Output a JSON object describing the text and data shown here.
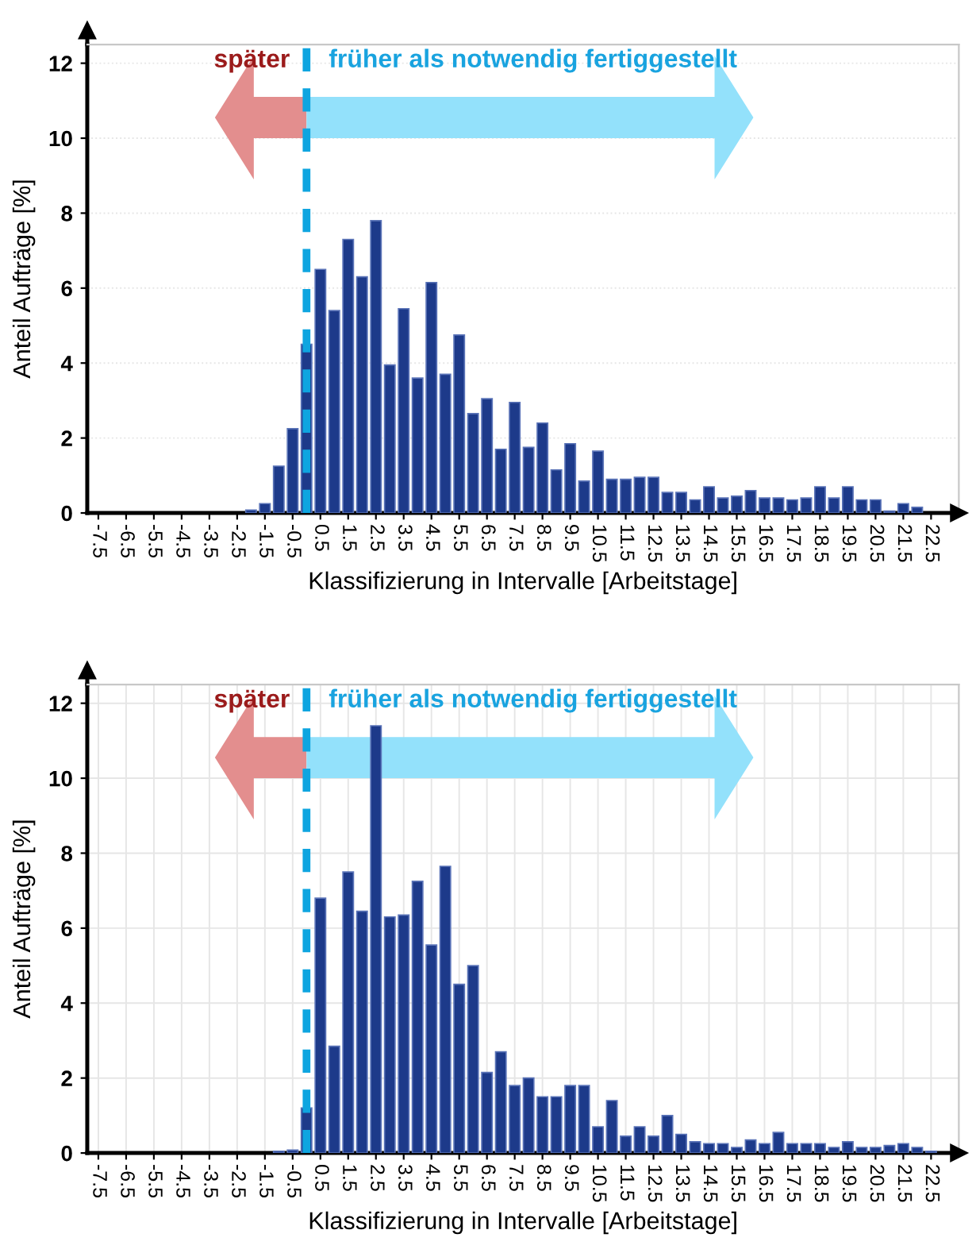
{
  "chart_data": [
    {
      "type": "bar",
      "xlabel": "Klassifizierung in Intervalle [Arbeitstage]",
      "ylabel": "Anteil Aufträge [%]",
      "x": [
        -2.0,
        -1.5,
        -1.0,
        -0.5,
        0.0,
        0.5,
        1.0,
        1.5,
        2.0,
        2.5,
        3.0,
        3.5,
        4.0,
        4.5,
        5.0,
        5.5,
        6.0,
        6.5,
        7.0,
        7.5,
        8.0,
        8.5,
        9.0,
        9.5,
        10.0,
        10.5,
        11.0,
        11.5,
        12.0,
        12.5,
        13.0,
        13.5,
        14.0,
        14.5,
        15.0,
        15.5,
        16.0,
        16.5,
        17.0,
        17.5,
        18.0,
        18.5,
        19.0,
        19.5,
        20.0,
        20.5,
        21.0,
        21.5,
        22.0
      ],
      "values": [
        0.08,
        0.25,
        1.25,
        2.25,
        4.5,
        6.5,
        5.4,
        7.3,
        6.3,
        7.8,
        3.95,
        5.45,
        3.6,
        6.15,
        3.7,
        4.75,
        2.65,
        3.05,
        1.7,
        2.95,
        1.75,
        2.4,
        1.15,
        1.85,
        0.85,
        1.65,
        0.9,
        0.9,
        0.95,
        0.95,
        0.55,
        0.55,
        0.35,
        0.7,
        0.4,
        0.45,
        0.6,
        0.4,
        0.4,
        0.35,
        0.4,
        0.7,
        0.4,
        0.7,
        0.35,
        0.35,
        0.05,
        0.25,
        0.15
      ],
      "color": "#1d3a8a",
      "xlim": [
        -7.9,
        23.5
      ],
      "ylim": [
        0,
        12.5
      ],
      "xticks": [
        -7.5,
        -6.5,
        -5.5,
        -4.5,
        -3.5,
        -2.5,
        -1.5,
        -0.5,
        0.5,
        1.5,
        2.5,
        3.5,
        4.5,
        5.5,
        6.5,
        7.5,
        8.5,
        9.5,
        10.5,
        11.5,
        12.5,
        13.5,
        14.5,
        15.5,
        16.5,
        17.5,
        18.5,
        19.5,
        20.5,
        21.5,
        22.5
      ],
      "yticks": [
        0,
        2,
        4,
        6,
        8,
        10,
        12
      ],
      "grid": "y",
      "ref_lines": [
        {
          "axis": "x",
          "value": 0,
          "color": "#0ea5e0",
          "line_style": "dashed"
        }
      ],
      "annotations": [
        "später",
        "früher als notwendig fertiggestellt"
      ]
    },
    {
      "type": "bar",
      "xlabel": "Klassifizierung in Intervalle [Arbeitstage]",
      "ylabel": "Anteil Aufträge [%]",
      "x": [
        -1.0,
        -0.5,
        0.0,
        0.5,
        1.0,
        1.5,
        2.0,
        2.5,
        3.0,
        3.5,
        4.0,
        4.5,
        5.0,
        5.5,
        6.0,
        6.5,
        7.0,
        7.5,
        8.0,
        8.5,
        9.0,
        9.5,
        10.0,
        10.5,
        11.0,
        11.5,
        12.0,
        12.5,
        13.0,
        13.5,
        14.0,
        14.5,
        15.0,
        15.5,
        16.0,
        16.5,
        17.0,
        17.5,
        18.0,
        18.5,
        19.0,
        19.5,
        20.0,
        20.5,
        21.0,
        21.5,
        22.0,
        22.5
      ],
      "values": [
        0.05,
        0.08,
        1.2,
        6.8,
        2.85,
        7.5,
        6.45,
        11.4,
        6.3,
        6.35,
        7.25,
        5.55,
        7.65,
        4.5,
        5.0,
        2.15,
        2.7,
        1.8,
        2.0,
        1.5,
        1.5,
        1.8,
        1.8,
        0.7,
        1.4,
        0.45,
        0.7,
        0.45,
        1.0,
        0.5,
        0.3,
        0.25,
        0.25,
        0.15,
        0.35,
        0.25,
        0.55,
        0.25,
        0.25,
        0.25,
        0.15,
        0.3,
        0.15,
        0.15,
        0.2,
        0.25,
        0.15,
        0.05
      ],
      "color": "#1d3a8a",
      "xlim": [
        -7.9,
        23.5
      ],
      "ylim": [
        0,
        12.5
      ],
      "xticks": [
        -7.5,
        -6.5,
        -5.5,
        -4.5,
        -3.5,
        -2.5,
        -1.5,
        -0.5,
        0.5,
        1.5,
        2.5,
        3.5,
        4.5,
        5.5,
        6.5,
        7.5,
        8.5,
        9.5,
        10.5,
        11.5,
        12.5,
        13.5,
        14.5,
        15.5,
        16.5,
        17.5,
        18.5,
        19.5,
        20.5,
        21.5,
        22.5
      ],
      "yticks": [
        0,
        2,
        4,
        6,
        8,
        10,
        12
      ],
      "grid": true,
      "ref_lines": [
        {
          "axis": "x",
          "value": 0,
          "color": "#0ea5e0",
          "line_style": "dashed"
        }
      ],
      "annotations": [
        "später",
        "früher als notwendig fertiggestellt"
      ]
    }
  ]
}
